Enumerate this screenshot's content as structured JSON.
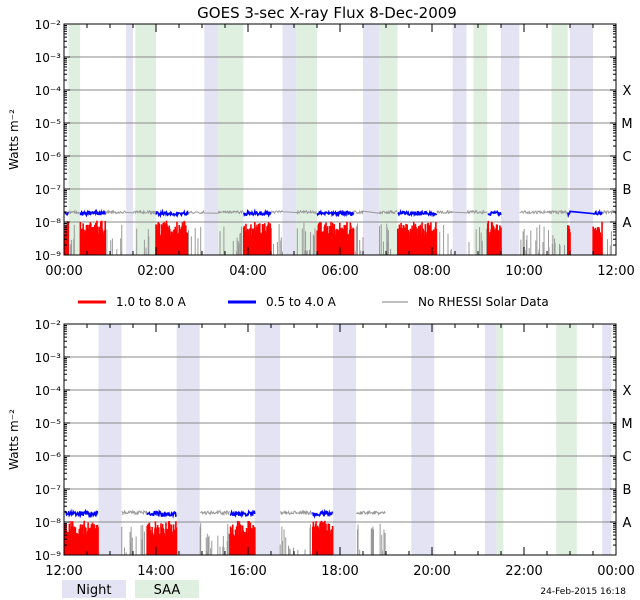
{
  "title": "GOES 3-sec X-ray Flux    8-Dec-2009",
  "timestamp": "24-Feb-2015 16:18",
  "legend": {
    "series": [
      {
        "label": "1.0 to 8.0 A",
        "color": "#ff0000"
      },
      {
        "label": "0.5 to 4.0 A",
        "color": "#0000ff"
      },
      {
        "label": "No RHESSI Solar Data",
        "color": "#999999"
      }
    ],
    "bands": [
      {
        "label": "Night",
        "color": "#e3e3f3"
      },
      {
        "label": "SAA",
        "color": "#e0f0e0"
      }
    ]
  },
  "chart_data": [
    {
      "type": "line",
      "panel": "top",
      "ylabel": "Watts m⁻²",
      "y_scale": "log",
      "ylim": [
        1e-09,
        0.01
      ],
      "y_ticks": [
        {
          "value": 1e-09,
          "label": "10⁻⁹"
        },
        {
          "value": 1e-08,
          "label": "10⁻⁸"
        },
        {
          "value": 1e-07,
          "label": "10⁻⁷"
        },
        {
          "value": 1e-06,
          "label": "10⁻⁶"
        },
        {
          "value": 1e-05,
          "label": "10⁻⁵"
        },
        {
          "value": 0.0001,
          "label": "10⁻⁴"
        },
        {
          "value": 0.001,
          "label": "10⁻³"
        },
        {
          "value": 0.01,
          "label": "10⁻²"
        }
      ],
      "flare_classes": [
        {
          "label": "A",
          "value": 1e-08
        },
        {
          "label": "B",
          "value": 1e-07
        },
        {
          "label": "C",
          "value": 1e-06
        },
        {
          "label": "M",
          "value": 1e-05
        },
        {
          "label": "X",
          "value": 0.0001
        }
      ],
      "xlim": [
        0,
        12
      ],
      "x_ticks": [
        {
          "value": 0,
          "label": "00:00"
        },
        {
          "value": 2,
          "label": "02:00"
        },
        {
          "value": 4,
          "label": "04:00"
        },
        {
          "value": 6,
          "label": "06:00"
        },
        {
          "value": 8,
          "label": "08:00"
        },
        {
          "value": 10,
          "label": "10:00"
        },
        {
          "value": 12,
          "label": "12:00"
        }
      ],
      "night": [
        [
          1.35,
          1.5
        ],
        [
          3.05,
          3.35
        ],
        [
          4.75,
          5.05
        ],
        [
          6.5,
          6.85
        ],
        [
          8.45,
          8.75
        ],
        [
          9.5,
          9.9
        ],
        [
          11.0,
          11.5
        ]
      ],
      "saa": [
        [
          0.1,
          0.35
        ],
        [
          1.55,
          2.0
        ],
        [
          3.35,
          3.9
        ],
        [
          5.05,
          5.5
        ],
        [
          6.85,
          7.25
        ],
        [
          8.9,
          9.2
        ],
        [
          10.6,
          10.95
        ]
      ],
      "data_end": 12,
      "series": [
        {
          "name": "1.0 to 8.0 A",
          "baseline": 3.5e-09,
          "max": 1.1e-08
        },
        {
          "name": "0.5 to 4.0 A",
          "baseline": 1.6e-08,
          "max": 2.1e-08
        },
        {
          "name": "No RHESSI Solar Data",
          "baseline": 1.8e-08,
          "max": 2.2e-08
        }
      ]
    },
    {
      "type": "line",
      "panel": "bottom",
      "ylabel": "Watts m⁻²",
      "y_scale": "log",
      "ylim": [
        1e-09,
        0.01
      ],
      "y_ticks": [
        {
          "value": 1e-09,
          "label": "10⁻⁹"
        },
        {
          "value": 1e-08,
          "label": "10⁻⁸"
        },
        {
          "value": 1e-07,
          "label": "10⁻⁷"
        },
        {
          "value": 1e-06,
          "label": "10⁻⁶"
        },
        {
          "value": 1e-05,
          "label": "10⁻⁵"
        },
        {
          "value": 0.0001,
          "label": "10⁻⁴"
        },
        {
          "value": 0.001,
          "label": "10⁻³"
        },
        {
          "value": 0.01,
          "label": "10⁻²"
        }
      ],
      "flare_classes": [
        {
          "label": "A",
          "value": 1e-08
        },
        {
          "label": "B",
          "value": 1e-07
        },
        {
          "label": "C",
          "value": 1e-06
        },
        {
          "label": "M",
          "value": 1e-05
        },
        {
          "label": "X",
          "value": 0.0001
        }
      ],
      "xlim": [
        12,
        24
      ],
      "x_ticks": [
        {
          "value": 12,
          "label": "12:00"
        },
        {
          "value": 14,
          "label": "14:00"
        },
        {
          "value": 16,
          "label": "16:00"
        },
        {
          "value": 18,
          "label": "18:00"
        },
        {
          "value": 20,
          "label": "20:00"
        },
        {
          "value": 22,
          "label": "22:00"
        },
        {
          "value": 24,
          "label": "00:00"
        }
      ],
      "night": [
        [
          12.75,
          13.25
        ],
        [
          14.45,
          14.95
        ],
        [
          16.15,
          16.7
        ],
        [
          17.85,
          18.35
        ],
        [
          19.55,
          20.05
        ],
        [
          21.15,
          21.4
        ],
        [
          23.7,
          23.9
        ]
      ],
      "saa": [
        [
          21.4,
          21.55
        ],
        [
          22.7,
          23.15
        ]
      ],
      "data_end": 19.0,
      "series": [
        {
          "name": "1.0 to 8.0 A",
          "baseline": 3.5e-09,
          "max": 1.1e-08
        },
        {
          "name": "0.5 to 4.0 A",
          "baseline": 1.5e-08,
          "max": 2.1e-08
        },
        {
          "name": "No RHESSI Solar Data",
          "baseline": 1.7e-08,
          "max": 2.2e-08
        }
      ]
    }
  ]
}
